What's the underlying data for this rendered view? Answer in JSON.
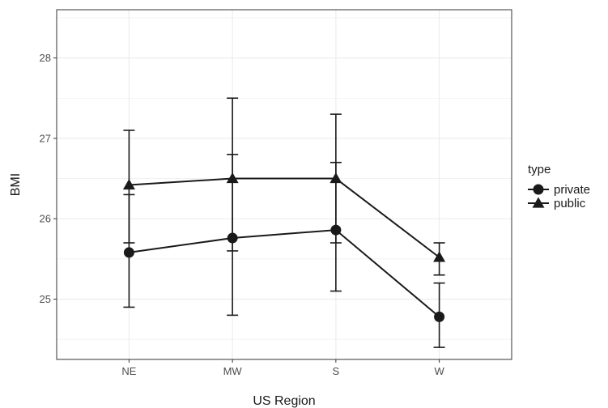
{
  "chart_data": {
    "type": "line",
    "xlabel": "US Region",
    "ylabel": "BMI",
    "categories": [
      "NE",
      "MW",
      "S",
      "W"
    ],
    "ylim": [
      24.25,
      28.6
    ],
    "yticks": [
      25,
      26,
      27,
      28
    ],
    "grid": true,
    "legend": {
      "title": "type",
      "placement": "right"
    },
    "series": [
      {
        "name": "private",
        "marker": "circle",
        "values": [
          25.58,
          25.76,
          25.86,
          24.78
        ],
        "lower": [
          24.9,
          24.8,
          25.1,
          24.4
        ],
        "upper": [
          26.3,
          26.8,
          26.7,
          25.2
        ]
      },
      {
        "name": "public",
        "marker": "triangle",
        "values": [
          26.42,
          26.5,
          26.5,
          25.52
        ],
        "lower": [
          25.7,
          25.6,
          25.7,
          25.3
        ],
        "upper": [
          27.1,
          27.5,
          27.3,
          25.7
        ]
      }
    ],
    "colors": {
      "line": "#1a1a1a",
      "grid": "#ebebeb",
      "panel_border": "#333333"
    }
  }
}
